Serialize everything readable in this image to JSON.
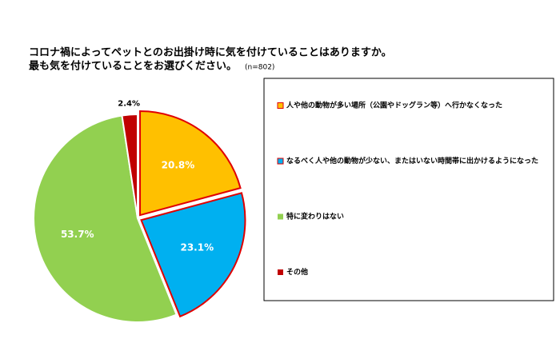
{
  "chart_data": {
    "type": "pie",
    "title": [
      "コロナ禍によってペットとのお出掛け時に気を付けていることはありますか。",
      "最も気を付けていることをお選びください。"
    ],
    "subtitle": "(n=802)",
    "categories": [
      "人や他の動物が多い場所（公園やドッグラン等）へ行かなくなった",
      "なるべく人や他の動物が少ない、またはいない時間帯に出かけるようになった",
      "特に変わりはない",
      "その他"
    ],
    "values": [
      20.8,
      23.1,
      53.7,
      2.4
    ],
    "value_labels": [
      "20.8%",
      "23.1%",
      "53.7%",
      "2.4%"
    ],
    "colors": [
      "#FFC000",
      "#00B0F0",
      "#92D050",
      "#C00000"
    ],
    "legend": "right"
  }
}
